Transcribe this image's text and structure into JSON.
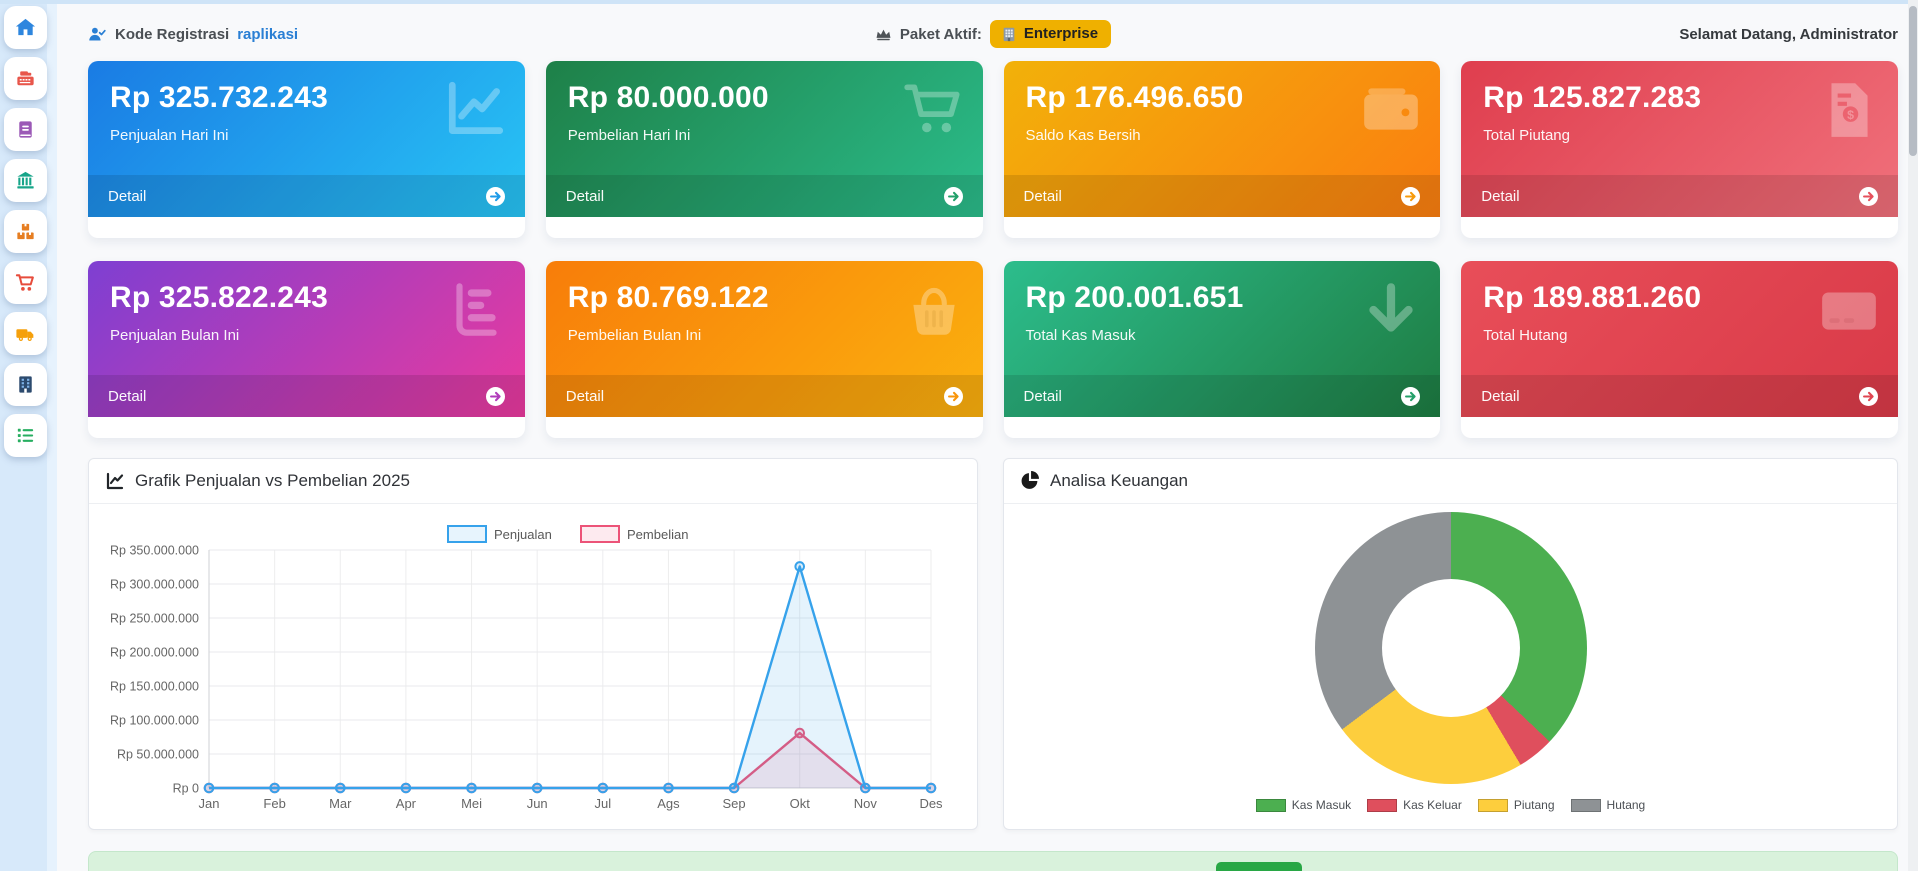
{
  "sidebar": {
    "bg": "#d7e9fa",
    "items": [
      {
        "icon": "home-icon",
        "color": "#2e86de"
      },
      {
        "icon": "cash-register-icon",
        "color": "#e8564b"
      },
      {
        "icon": "book-icon",
        "color": "#9b59b6"
      },
      {
        "icon": "bank-icon",
        "color": "#17a589"
      },
      {
        "icon": "boxes-icon",
        "color": "#e67e22"
      },
      {
        "icon": "shopping-cart-icon",
        "color": "#e74c3c"
      },
      {
        "icon": "truck-icon",
        "color": "#f5a00c"
      },
      {
        "icon": "building-icon",
        "color": "#2c4a6e"
      },
      {
        "icon": "list-icon",
        "color": "#27ae60"
      }
    ]
  },
  "topbar": {
    "registration_label": "Kode Registrasi",
    "registration_code": "raplikasi",
    "package_label": "Paket Aktif:",
    "package_badge": "Enterprise",
    "badge_bg": "#efb000",
    "welcome": "Selamat Datang, Administrator"
  },
  "cards": [
    {
      "value": "Rp 325.732.243",
      "label": "Penjualan Hari Ini",
      "detail_label": "Detail",
      "icon": "chart-line-icon",
      "gradient_from": "#1a7be4",
      "gradient_to": "#28c5f5",
      "accent": "#1e9be9"
    },
    {
      "value": "Rp 80.000.000",
      "label": "Pembelian Hari Ini",
      "detail_label": "Detail",
      "icon": "shopping-cart-icon",
      "gradient_from": "#1e8048",
      "gradient_to": "#2bbd8b",
      "accent": "#23a06a"
    },
    {
      "value": "Rp 176.496.650",
      "label": "Saldo Kas Bersih",
      "detail_label": "Detail",
      "icon": "wallet-icon",
      "gradient_from": "#f2b10a",
      "gradient_to": "#fb7e10",
      "accent": "#f79b0d"
    },
    {
      "value": "Rp 125.827.283",
      "label": "Total Piutang",
      "detail_label": "Detail",
      "icon": "invoice-dollar-icon",
      "gradient_from": "#df3e4e",
      "gradient_to": "#f0707b",
      "accent": "#e6505c"
    },
    {
      "value": "Rp 325.822.243",
      "label": "Penjualan Bulan Ini",
      "detail_label": "Detail",
      "icon": "chart-bar-icon",
      "gradient_from": "#7e3fd2",
      "gradient_to": "#ea3a9e",
      "accent": "#b13dbb"
    },
    {
      "value": "Rp 80.769.122",
      "label": "Pembelian Bulan Ini",
      "detail_label": "Detail",
      "icon": "basket-icon",
      "gradient_from": "#f87d0a",
      "gradient_to": "#fbb10e",
      "accent": "#f9960c"
    },
    {
      "value": "Rp 200.001.651",
      "label": "Total Kas Masuk",
      "detail_label": "Detail",
      "icon": "arrow-down-icon",
      "gradient_from": "#2cbd8c",
      "gradient_to": "#1e7c42",
      "accent": "#25a069"
    },
    {
      "value": "Rp 189.881.260",
      "label": "Total Hutang",
      "detail_label": "Detail",
      "icon": "credit-card-icon",
      "gradient_from": "#e84e59",
      "gradient_to": "#d93a48",
      "accent": "#e04551"
    }
  ],
  "panels": {
    "sales_chart_title": "Grafik Penjualan vs Pembelian 2025",
    "finance_title": "Analisa Keuangan"
  },
  "chart_data": [
    {
      "type": "line",
      "title": "Grafik Penjualan vs Pembelian 2025",
      "x": [
        "Jan",
        "Feb",
        "Mar",
        "Apr",
        "Mei",
        "Jun",
        "Jul",
        "Ags",
        "Sep",
        "Okt",
        "Nov",
        "Des"
      ],
      "series": [
        {
          "name": "Penjualan",
          "color": "#36a2eb",
          "values": [
            0,
            0,
            0,
            0,
            0,
            0,
            0,
            0,
            0,
            325822243,
            0,
            0
          ]
        },
        {
          "name": "Pembelian",
          "color": "#ec5378",
          "values": [
            0,
            0,
            0,
            0,
            0,
            0,
            0,
            0,
            0,
            80769122,
            0,
            0
          ]
        }
      ],
      "ylim": [
        0,
        350000000
      ],
      "ytick_step": 50000000,
      "ytick_labels": [
        "Rp 0",
        "Rp 50.000.000",
        "Rp 100.000.000",
        "Rp 150.000.000",
        "Rp 200.000.000",
        "Rp 250.000.000",
        "Rp 300.000.000",
        "Rp 350.000.000"
      ],
      "legend_position": "top",
      "grid": true
    },
    {
      "type": "pie",
      "donut": true,
      "title": "Analisa Keuangan",
      "labels": [
        "Kas Masuk",
        "Kas Keluar",
        "Piutang",
        "Hutang"
      ],
      "values": [
        200001651,
        23505001,
        125827283,
        189881260
      ],
      "colors": [
        "#4caf50",
        "#df4f5d",
        "#fdce3d",
        "#8e9295"
      ],
      "legend_position": "bottom"
    }
  ],
  "footer_bar": {
    "bg": "#d9f2dc",
    "button_color": "#28a745"
  }
}
